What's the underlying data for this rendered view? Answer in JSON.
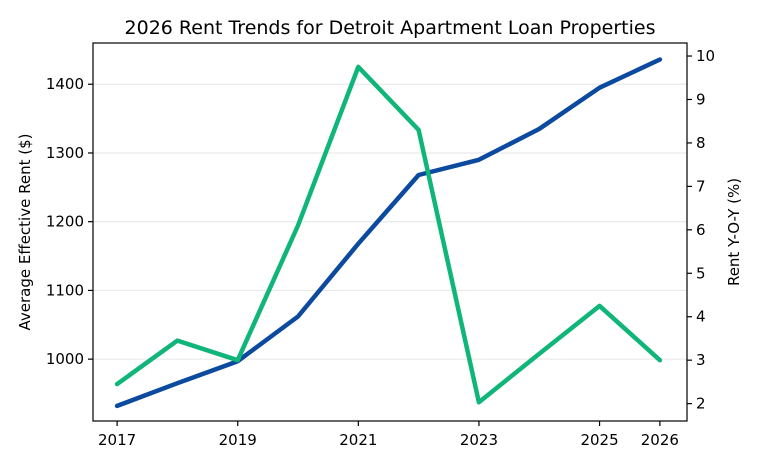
{
  "chart_data": {
    "type": "line",
    "title": "2026 Rent Trends for Detroit Apartment Loan Properties",
    "xlabel": "",
    "ylabel_left": "Average Effective Rent ($)",
    "ylabel_right": "Rent Y-O-Y (%)",
    "x": [
      2017,
      2018,
      2019,
      2020,
      2021,
      2022,
      2023,
      2024,
      2025,
      2026
    ],
    "x_ticks": [
      2017,
      2019,
      2021,
      2023,
      2025,
      2026
    ],
    "x_tick_labels": [
      "2017",
      "2019",
      "2021",
      "2023",
      "2025",
      "2026"
    ],
    "x_range": [
      2016.6,
      2026.45
    ],
    "ylim_left": [
      910,
      1460
    ],
    "ylim_right": [
      1.6,
      10.3
    ],
    "y_ticks_left": [
      1000,
      1100,
      1200,
      1300,
      1400
    ],
    "y_tick_labels_left": [
      "1000",
      "1100",
      "1200",
      "1300",
      "1400"
    ],
    "y_ticks_right": [
      2,
      3,
      4,
      5,
      6,
      7,
      8,
      9,
      10
    ],
    "y_tick_labels_right": [
      "2",
      "3",
      "4",
      "5",
      "6",
      "7",
      "8",
      "9",
      "10"
    ],
    "grid": "horizontal, left axis",
    "legend": "none",
    "series": [
      {
        "axis": "left",
        "color": "#0b4a9e",
        "values": [
          932,
          965,
          997,
          1062,
          1168,
          1268,
          1290,
          1335,
          1395,
          1436
        ]
      },
      {
        "axis": "right",
        "color": "#10b57a",
        "values": [
          2.45,
          3.45,
          3.0,
          6.1,
          9.75,
          8.3,
          2.03,
          3.15,
          4.25,
          3.0
        ]
      }
    ]
  }
}
